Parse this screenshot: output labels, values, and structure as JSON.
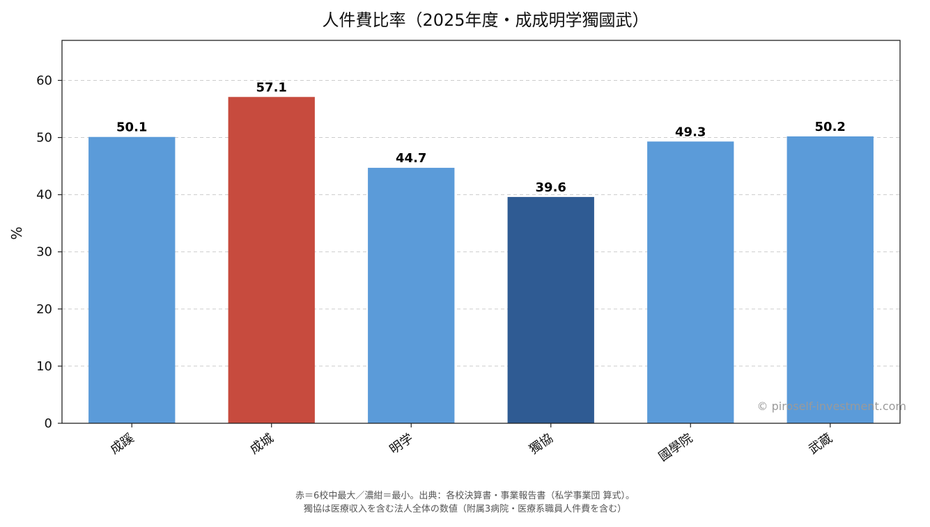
{
  "chart_data": {
    "type": "bar",
    "title": "人件費比率（2025年度・成成明学獨國武）",
    "categories": [
      "成蹊",
      "成城",
      "明学",
      "獨協",
      "國學院",
      "武蔵"
    ],
    "values": [
      50.1,
      57.1,
      44.7,
      39.6,
      49.3,
      50.2
    ],
    "value_labels": [
      "50.1",
      "57.1",
      "44.7",
      "39.6",
      "49.3",
      "50.2"
    ],
    "bar_colors": [
      "#5b9bd9",
      "#c74b3e",
      "#5b9bd9",
      "#2f5b93",
      "#5b9bd9",
      "#5b9bd9"
    ],
    "xlabel": "",
    "ylabel": "%",
    "ylim": [
      0,
      67
    ],
    "yticks": [
      0,
      10,
      20,
      30,
      40,
      50,
      60
    ],
    "grid": "y-dashed",
    "legend": "none"
  },
  "watermark": "© piroself-investment.com",
  "footnote": {
    "line1": "赤＝6校中最大／濃紺＝最小。出典：各校決算書・事業報告書（私学事業団 算式）。",
    "line2": "獨協は医療収入を含む法人全体の数値（附属3病院・医療系職員人件費を含む）"
  },
  "colors": {
    "axis": "#222222",
    "grid": "#cccccc"
  }
}
